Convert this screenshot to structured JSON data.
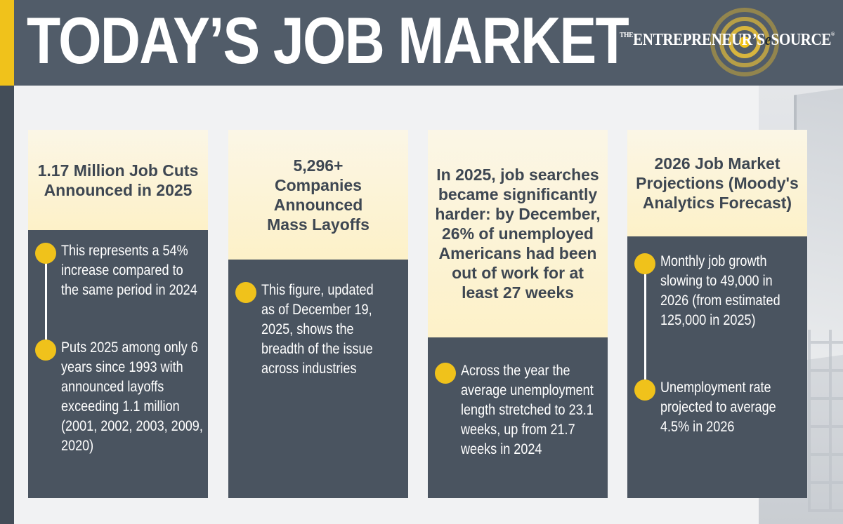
{
  "header": {
    "title": "TODAY’S JOB MARKET",
    "logo": {
      "the": "THE",
      "brand": "ENTREPRENEUR’S",
      "e": "e",
      "source": "SOURCE",
      "tm": "®"
    }
  },
  "columns": [
    {
      "heading": "1.17 Million Job Cuts Announced in 2025",
      "bullets": [
        "This represents a 54% increase compared to the same period in 2024",
        "Puts 2025 among only 6 years since 1993 with announced layoffs exceeding 1.1 million (2001, 2002, 2003, 2009, 2020)"
      ]
    },
    {
      "heading": "5,296+ Companies Announced Mass Layoffs",
      "bullets": [
        "This figure, updated as of December 19, 2025, shows the breadth of the issue across industries"
      ]
    },
    {
      "heading": "In 2025, job searches became significantly harder: by December, 26% of unemployed Americans had been out of work for at least 27 weeks",
      "bullets": [
        "Across the year the average unemployment length stretched to 23.1 weeks, up from 21.7 weeks in 2024"
      ]
    },
    {
      "heading": "2026 Job Market Projections (Moody's Analytics Forecast)",
      "bullets": [
        "Monthly job growth slowing to 49,000 in 2026 (from estimated 125,000 in 2025)",
        "Unemployment rate projected to average 4.5% in 2026"
      ]
    }
  ],
  "colors": {
    "header": "#515c69",
    "accent": "#f0c21b",
    "card": "#4a5460",
    "heading_bg": "#fdf1c8",
    "heading_text": "#3e4752"
  }
}
